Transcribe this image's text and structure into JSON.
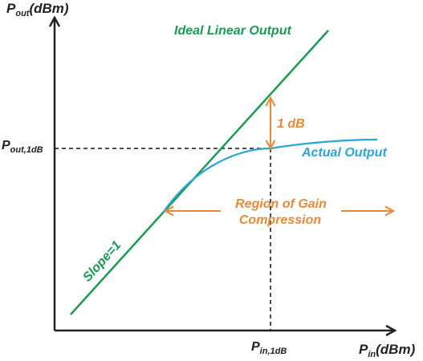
{
  "y_axis": {
    "symbol": "P",
    "subscript": "out",
    "unit": "(dBm)"
  },
  "x_axis": {
    "symbol": "P",
    "subscript": "in",
    "unit": "(dBm)"
  },
  "markers": {
    "p_out_1db": {
      "symbol": "P",
      "subscript": "out,1dB"
    },
    "p_in_1db": {
      "symbol": "P",
      "subscript": "in,1dB"
    }
  },
  "annotations": {
    "ideal_linear_output": "Ideal Linear Output",
    "actual_output": "Actual Output",
    "one_db": "1 dB",
    "region_line1": "Region of Gain",
    "region_line2": "Compression",
    "slope": "Slope=1"
  },
  "colors": {
    "ideal_line": "#1a9a52",
    "actual_curve": "#2aa6d6",
    "annotation_orange": "#e8893a",
    "axis": "#222222"
  }
}
